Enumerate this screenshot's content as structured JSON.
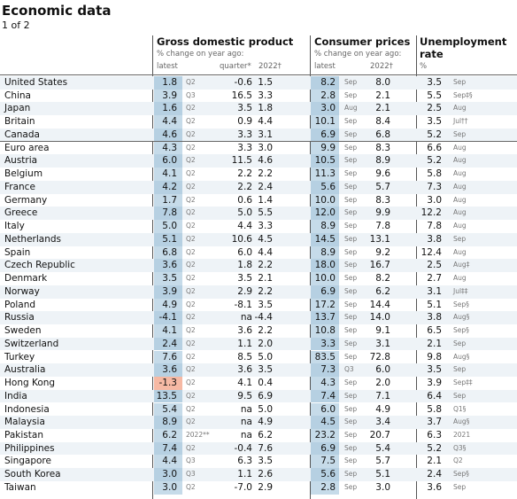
{
  "header": {
    "title": "Economic data",
    "subtitle": "1 of 2"
  },
  "table": {
    "columns": {
      "gdp": {
        "title": "Gross domestic product",
        "note": "% change on year ago:",
        "sub": [
          "latest",
          "quarter*",
          "2022†"
        ]
      },
      "cpi": {
        "title": "Consumer prices",
        "note": "% change on year ago:",
        "sub": [
          "latest",
          "2022†"
        ]
      },
      "unemployment": {
        "title": "Unemployment rate",
        "sub": [
          "%"
        ]
      }
    },
    "groups": [
      {
        "rows": [
          [
            "United States",
            "1.8",
            "Q2",
            "-0.6",
            "1.5",
            "8.2",
            "Sep",
            "8.0",
            "3.5",
            "Sep"
          ],
          [
            "China",
            "3.9",
            "Q3",
            "16.5",
            "3.3",
            "2.8",
            "Sep",
            "2.1",
            "5.5",
            "Sep‡§"
          ],
          [
            "Japan",
            "1.6",
            "Q2",
            "3.5",
            "1.8",
            "3.0",
            "Aug",
            "2.1",
            "2.5",
            "Aug"
          ],
          [
            "Britain",
            "4.4",
            "Q2",
            "0.9",
            "4.4",
            "10.1",
            "Sep",
            "8.4",
            "3.5",
            "Jul††"
          ],
          [
            "Canada",
            "4.6",
            "Q2",
            "3.3",
            "3.1",
            "6.9",
            "Sep",
            "6.8",
            "5.2",
            "Sep"
          ]
        ]
      },
      {
        "rows": [
          [
            "Euro area",
            "4.3",
            "Q2",
            "3.3",
            "3.0",
            "9.9",
            "Sep",
            "8.3",
            "6.6",
            "Aug"
          ],
          [
            "Austria",
            "6.0",
            "Q2",
            "11.5",
            "4.6",
            "10.5",
            "Sep",
            "8.9",
            "5.2",
            "Aug"
          ],
          [
            "Belgium",
            "4.1",
            "Q2",
            "2.2",
            "2.2",
            "11.3",
            "Sep",
            "9.6",
            "5.8",
            "Aug"
          ],
          [
            "France",
            "4.2",
            "Q2",
            "2.2",
            "2.4",
            "5.6",
            "Sep",
            "5.7",
            "7.3",
            "Aug"
          ],
          [
            "Germany",
            "1.7",
            "Q2",
            "0.6",
            "1.4",
            "10.0",
            "Sep",
            "8.3",
            "3.0",
            "Aug"
          ],
          [
            "Greece",
            "7.8",
            "Q2",
            "5.0",
            "5.5",
            "12.0",
            "Sep",
            "9.9",
            "12.2",
            "Aug"
          ],
          [
            "Italy",
            "5.0",
            "Q2",
            "4.4",
            "3.3",
            "8.9",
            "Sep",
            "7.8",
            "7.8",
            "Aug"
          ],
          [
            "Netherlands",
            "5.1",
            "Q2",
            "10.6",
            "4.5",
            "14.5",
            "Sep",
            "13.1",
            "3.8",
            "Sep"
          ],
          [
            "Spain",
            "6.8",
            "Q2",
            "6.0",
            "4.4",
            "8.9",
            "Sep",
            "9.2",
            "12.4",
            "Aug"
          ]
        ]
      },
      {
        "rows": [
          [
            "Czech Republic",
            "3.6",
            "Q2",
            "1.8",
            "2.2",
            "18.0",
            "Sep",
            "16.7",
            "2.5",
            "Aug‡"
          ],
          [
            "Denmark",
            "3.5",
            "Q2",
            "3.5",
            "2.1",
            "10.0",
            "Sep",
            "8.2",
            "2.7",
            "Aug"
          ],
          [
            "Norway",
            "3.9",
            "Q2",
            "2.9",
            "2.2",
            "6.9",
            "Sep",
            "6.2",
            "3.1",
            "Jul‡‡"
          ],
          [
            "Poland",
            "4.9",
            "Q2",
            "-8.1",
            "3.5",
            "17.2",
            "Sep",
            "14.4",
            "5.1",
            "Sep§"
          ],
          [
            "Russia",
            "-4.1",
            "Q2",
            "na",
            "-4.4",
            "13.7",
            "Sep",
            "14.0",
            "3.8",
            "Aug§"
          ],
          [
            "Sweden",
            "4.1",
            "Q2",
            "3.6",
            "2.2",
            "10.8",
            "Sep",
            "9.1",
            "6.5",
            "Sep§"
          ],
          [
            "Switzerland",
            "2.4",
            "Q2",
            "1.1",
            "2.0",
            "3.3",
            "Sep",
            "3.1",
            "2.1",
            "Sep"
          ],
          [
            "Turkey",
            "7.6",
            "Q2",
            "8.5",
            "5.0",
            "83.5",
            "Sep",
            "72.8",
            "9.8",
            "Aug§"
          ]
        ]
      },
      {
        "rows": [
          [
            "Australia",
            "3.6",
            "Q2",
            "3.6",
            "3.5",
            "7.3",
            "Q3",
            "6.0",
            "3.5",
            "Sep"
          ],
          [
            "Hong Kong",
            "-1.3",
            "Q2",
            "4.1",
            "0.4",
            "4.3",
            "Sep",
            "2.0",
            "3.9",
            "Sep‡‡"
          ],
          [
            "India",
            "13.5",
            "Q2",
            "9.5",
            "6.9",
            "7.4",
            "Sep",
            "7.1",
            "6.4",
            "Sep"
          ],
          [
            "Indonesia",
            "5.4",
            "Q2",
            "na",
            "5.0",
            "6.0",
            "Sep",
            "4.9",
            "5.8",
            "Q1§"
          ],
          [
            "Malaysia",
            "8.9",
            "Q2",
            "na",
            "4.9",
            "4.5",
            "Sep",
            "3.4",
            "3.7",
            "Aug§"
          ],
          [
            "Pakistan",
            "6.2",
            "2022**",
            "na",
            "6.2",
            "23.2",
            "Sep",
            "20.7",
            "6.3",
            "2021"
          ],
          [
            "Philippines",
            "7.4",
            "Q2",
            "-0.4",
            "7.6",
            "6.9",
            "Sep",
            "5.4",
            "5.2",
            "Q3§"
          ],
          [
            "Singapore",
            "4.4",
            "Q3",
            "6.3",
            "3.5",
            "7.5",
            "Sep",
            "5.7",
            "2.1",
            "Q2"
          ],
          [
            "South Korea",
            "3.0",
            "Q3",
            "1.1",
            "2.6",
            "5.6",
            "Sep",
            "5.1",
            "2.4",
            "Sep§"
          ],
          [
            "Taiwan",
            "3.0",
            "Q2",
            "-7.0",
            "2.9",
            "2.8",
            "Sep",
            "3.0",
            "3.6",
            "Sep"
          ]
        ]
      }
    ]
  }
}
